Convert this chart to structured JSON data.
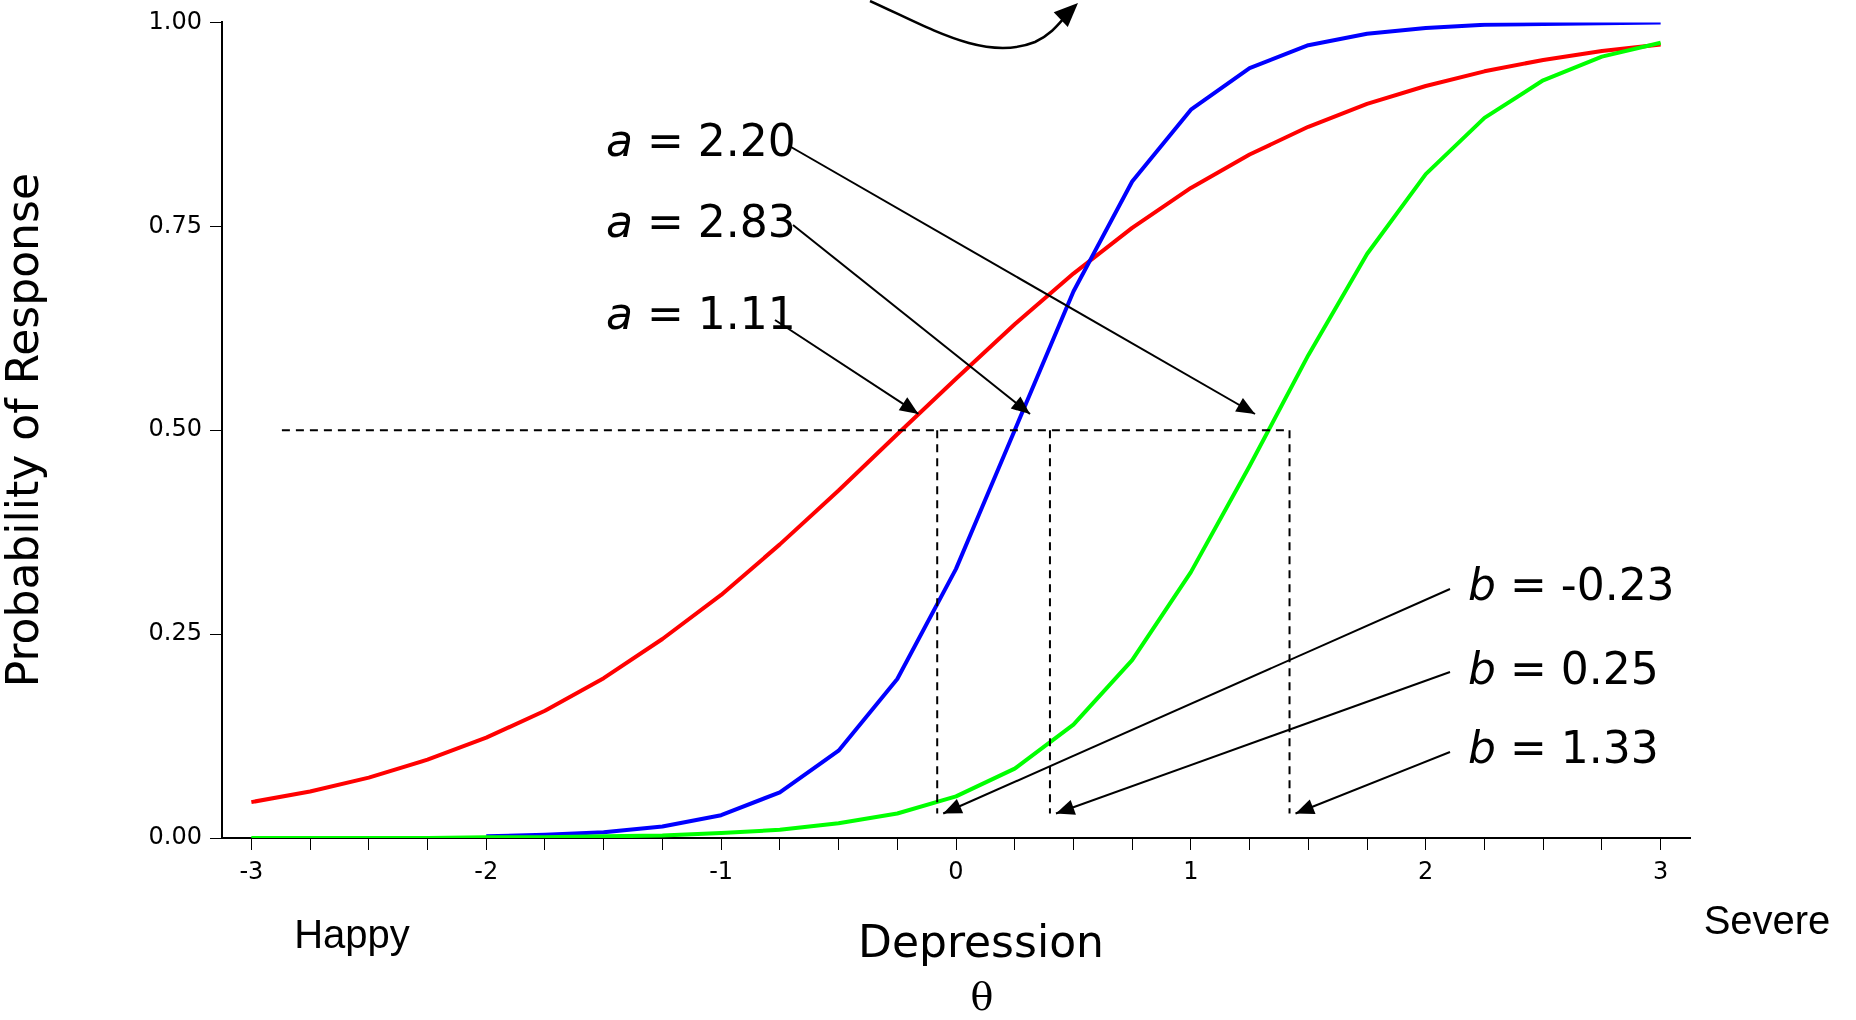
{
  "chart_data": {
    "type": "line",
    "xlabel": "Depression",
    "ylabel": "Probability of Response",
    "marker": "none",
    "x": [
      -3,
      -2.75,
      -2.5,
      -2.25,
      -2,
      -1.75,
      -1.5,
      -1.25,
      -1,
      -0.75,
      -0.5,
      -0.25,
      0,
      0.25,
      0.5,
      0.75,
      1,
      1.25,
      1.5,
      1.75,
      2,
      2.25,
      2.5,
      2.75,
      3
    ],
    "series": [
      {
        "color": "#ff0000",
        "values": [
          0.044,
          0.057,
          0.074,
          0.096,
          0.123,
          0.156,
          0.196,
          0.244,
          0.298,
          0.36,
          0.426,
          0.495,
          0.563,
          0.63,
          0.692,
          0.748,
          0.797,
          0.838,
          0.872,
          0.9,
          0.922,
          0.94,
          0.954,
          0.965,
          0.973
        ]
      },
      {
        "color": "#0000ff",
        "values": [
          null,
          null,
          null,
          null,
          0.002,
          0.004,
          0.007,
          0.014,
          0.028,
          0.056,
          0.107,
          0.195,
          0.33,
          0.5,
          0.67,
          0.805,
          0.893,
          0.944,
          0.972,
          0.986,
          0.993,
          0.997,
          0.998,
          0.999,
          1
        ]
      },
      {
        "color": "#00ff00",
        "values": [
          0,
          0,
          0,
          0,
          0.001,
          0.001,
          0.002,
          0.003,
          0.006,
          0.01,
          0.018,
          0.03,
          0.051,
          0.085,
          0.139,
          0.218,
          0.326,
          0.456,
          0.592,
          0.716,
          0.814,
          0.883,
          0.929,
          0.958,
          0.975
        ]
      },
      {
        "color": "#000000",
        "line_style": "dashed",
        "x": [
          -2.87,
          1.42
        ],
        "values": [
          0.5,
          0.5
        ]
      },
      {
        "color": "#000000",
        "line_style": "dashed",
        "x": [
          -0.08,
          -0.08
        ],
        "values": [
          0.5,
          0.03
        ]
      },
      {
        "color": "#000000",
        "line_style": "dashed",
        "x": [
          0.4,
          0.4
        ],
        "values": [
          0.5,
          0.03
        ]
      },
      {
        "color": "#000000",
        "line_style": "dashed",
        "x": [
          1.42,
          1.42
        ],
        "values": [
          0.5,
          0.03
        ]
      }
    ],
    "xlim": [
      -3.125,
      3.125
    ],
    "ylim": [
      0,
      1
    ],
    "xticks": [
      -3,
      {
        "value": -2.75,
        "label": null
      },
      {
        "value": -2.5,
        "label": null
      },
      {
        "value": -2.25,
        "label": null
      },
      -2,
      {
        "value": -1.75,
        "label": null
      },
      {
        "value": -1.5,
        "label": null
      },
      {
        "value": -1.25,
        "label": null
      },
      -1,
      {
        "value": -0.75,
        "label": null
      },
      {
        "value": -0.5,
        "label": null
      },
      {
        "value": -0.25,
        "label": null
      },
      0,
      {
        "value": 0.25,
        "label": null
      },
      {
        "value": 0.5,
        "label": null
      },
      {
        "value": 0.75,
        "label": null
      },
      1,
      {
        "value": 1.25,
        "label": null
      },
      {
        "value": 1.5,
        "label": null
      },
      {
        "value": 1.75,
        "label": null
      },
      2,
      {
        "value": 2.25,
        "label": null
      },
      {
        "value": 2.5,
        "label": null
      },
      {
        "value": 2.75,
        "label": null
      },
      3
    ],
    "yticks": [
      {
        "value": 0,
        "label": "0.00"
      },
      {
        "value": 0.25,
        "label": "0.25"
      },
      {
        "value": 0.5,
        "label": "0.50"
      },
      {
        "value": 0.75,
        "label": "0.75"
      },
      {
        "value": 1,
        "label": "1.00"
      }
    ],
    "annotations": [
      "a = 2.20",
      "a = 2.83",
      {
        "text": "a = 1.11",
        "x": -0.16,
        "y": 0.52
      },
      {
        "text": "b = -0.23",
        "x": -0.08,
        "y": 0.03
      },
      {
        "text": "b = 0.25",
        "x": 0.4,
        "y": 0.03
      },
      {
        "text": "b = 1.33",
        "x": 1.42,
        "y": 0.03
      },
      "Happy",
      "Severe",
      "θ"
    ]
  }
}
